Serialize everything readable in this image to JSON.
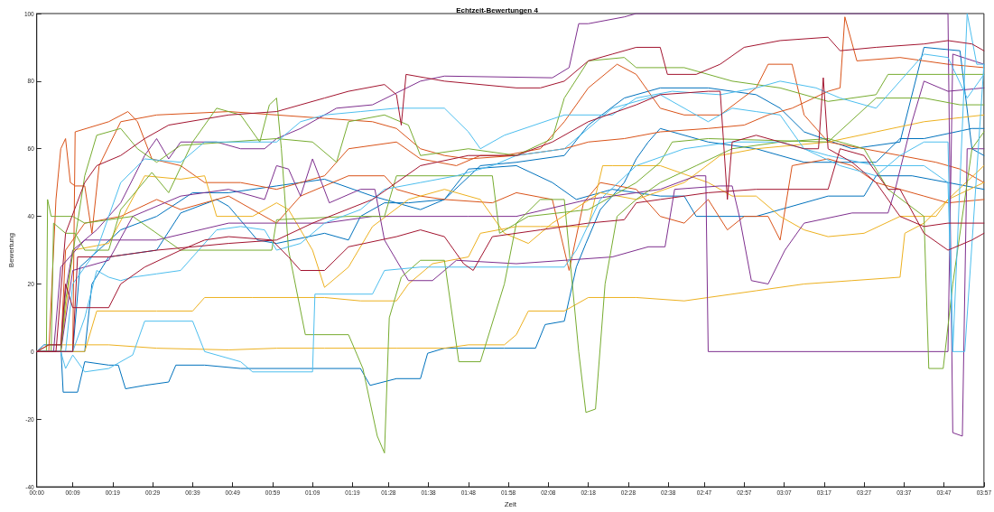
{
  "chart_data": {
    "type": "line",
    "title": "Echtzeit-Bewertungen 4",
    "xlabel": "Zeit",
    "ylabel": "Bewertung",
    "xlim": [
      0,
      3.95
    ],
    "xticks": [
      {
        "value": 0,
        "label": "00:00"
      },
      {
        "value": 0.15,
        "label": "00:09"
      },
      {
        "value": 0.3167,
        "label": "00:19"
      },
      {
        "value": 0.4833,
        "label": "00:29"
      },
      {
        "value": 0.65,
        "label": "00:39"
      },
      {
        "value": 0.8167,
        "label": "00:49"
      },
      {
        "value": 0.9833,
        "label": "00:59"
      },
      {
        "value": 1.15,
        "label": "01:09"
      },
      {
        "value": 1.3167,
        "label": "01:19"
      },
      {
        "value": 1.4667,
        "label": "01:28"
      },
      {
        "value": 1.6333,
        "label": "01:38"
      },
      {
        "value": 1.8,
        "label": "01:48"
      },
      {
        "value": 1.9667,
        "label": "01:58"
      },
      {
        "value": 2.1333,
        "label": "02:08"
      },
      {
        "value": 2.3,
        "label": "02:18"
      },
      {
        "value": 2.4667,
        "label": "02:28"
      },
      {
        "value": 2.6333,
        "label": "02:38"
      },
      {
        "value": 2.7833,
        "label": "02:47"
      },
      {
        "value": 2.95,
        "label": "02:57"
      },
      {
        "value": 3.1167,
        "label": "03:07"
      },
      {
        "value": 3.2833,
        "label": "03:17"
      },
      {
        "value": 3.45,
        "label": "03:27"
      },
      {
        "value": 3.6167,
        "label": "03:37"
      },
      {
        "value": 3.7833,
        "label": "03:47"
      },
      {
        "value": 3.95,
        "label": "03:57"
      }
    ],
    "ylim": [
      -40,
      100
    ],
    "yticks": [
      -40,
      -20,
      0,
      20,
      40,
      60,
      80,
      100
    ],
    "grid": false,
    "marker": "none",
    "line_style": "solid",
    "series": [
      {
        "color": "#0072bd",
        "x": [
          0,
          0.03,
          0.1,
          0.11,
          0.17,
          0.2,
          0.3,
          0.34,
          0.37,
          0.45,
          0.55,
          0.58,
          0.7,
          0.85,
          1.35,
          1.39,
          1.5,
          1.6,
          1.63,
          1.7,
          1.95,
          2.08,
          2.12,
          2.2,
          2.25,
          2.29,
          2.35,
          2.45,
          2.5,
          2.55,
          2.6,
          2.8,
          3.0,
          3.2,
          3.5,
          3.6,
          3.7,
          3.9,
          3.95
        ],
        "values": [
          0,
          2,
          2,
          -12,
          -12,
          -3,
          -4,
          -4,
          -11,
          -10,
          -9,
          -4,
          -4,
          -5,
          -5,
          -10,
          -8,
          -8,
          -0.5,
          1,
          1,
          1,
          8,
          9,
          25,
          32,
          42,
          50,
          57,
          62,
          66,
          62,
          60,
          56,
          56,
          63,
          63,
          66,
          66
        ]
      },
      {
        "color": "#0072bd",
        "x": [
          0,
          0.2,
          0.23,
          0.3,
          0.4,
          0.5,
          0.6,
          0.75,
          0.8,
          0.92,
          1.0,
          1.2,
          1.3,
          1.35,
          1.45,
          1.55,
          1.7,
          1.85,
          2.0,
          2.2,
          2.3,
          2.45,
          2.6,
          2.8,
          3.0,
          3.1,
          3.2,
          3.4,
          3.6,
          3.7,
          3.85,
          3.9,
          3.95
        ],
        "values": [
          0,
          0,
          20,
          28,
          29,
          30,
          41,
          45,
          43,
          33,
          32,
          35,
          33,
          40,
          44,
          44,
          45,
          55,
          56,
          58,
          67,
          75,
          78,
          78,
          76,
          72,
          65,
          60,
          62,
          90,
          89,
          60,
          58
        ]
      },
      {
        "color": "#0072bd",
        "x": [
          0,
          0.15,
          0.18,
          0.35,
          0.5,
          0.65,
          0.8,
          1.0,
          1.2,
          1.4,
          1.6,
          1.7,
          1.8,
          2.0,
          2.15,
          2.25,
          2.4,
          2.6,
          2.7,
          2.75,
          2.9,
          3.0,
          3.1,
          3.3,
          3.45,
          3.5,
          3.65,
          3.8,
          3.95
        ],
        "values": [
          0,
          0,
          25,
          36,
          40,
          47,
          47,
          49,
          51,
          46,
          42,
          45,
          54,
          55,
          50,
          45,
          48,
          46,
          46,
          40,
          40,
          40,
          42,
          46,
          46,
          52,
          52,
          50,
          48
        ]
      },
      {
        "color": "#d95319",
        "x": [
          0,
          0.05,
          0.08,
          0.1,
          0.12,
          0.14,
          0.16,
          0.2,
          0.23,
          0.26,
          0.35,
          0.5,
          0.8,
          1.0,
          1.2,
          1.4,
          1.5,
          1.6,
          1.7,
          1.8,
          2.0,
          2.2,
          2.3,
          2.45,
          2.6,
          2.8,
          2.95,
          3.05,
          3.15,
          3.3,
          3.35,
          3.37,
          3.42,
          3.6,
          3.8,
          3.95
        ],
        "values": [
          0,
          0,
          45,
          60,
          63,
          50,
          49,
          49,
          35,
          55,
          68,
          70,
          71,
          70,
          69,
          68,
          66,
          60,
          58,
          57,
          58,
          60,
          62,
          63,
          65,
          66,
          67,
          70,
          72,
          77,
          78,
          99,
          86,
          87,
          85,
          84
        ]
      },
      {
        "color": "#d95319",
        "x": [
          0,
          0.15,
          0.16,
          0.3,
          0.38,
          0.42,
          0.48,
          0.6,
          0.7,
          0.85,
          1.0,
          1.2,
          1.3,
          1.5,
          1.6,
          1.75,
          1.85,
          1.95,
          2.1,
          2.2,
          2.3,
          2.42,
          2.5,
          2.6,
          2.7,
          2.85,
          3.0,
          3.05,
          3.15,
          3.2,
          3.3,
          3.45,
          3.6,
          3.75,
          3.85,
          3.95
        ],
        "values": [
          0,
          0,
          65,
          68,
          71,
          68,
          57,
          55,
          50,
          50,
          48,
          52,
          60,
          62,
          57,
          55,
          58,
          58,
          60,
          68,
          78,
          85,
          82,
          72,
          70,
          70,
          78,
          85,
          85,
          70,
          62,
          60,
          58,
          56,
          54,
          50
        ]
      },
      {
        "color": "#d95319",
        "x": [
          0,
          0.1,
          0.12,
          0.2,
          0.35,
          0.5,
          0.6,
          0.8,
          1.0,
          1.1,
          1.2,
          1.3,
          1.45,
          1.5,
          1.6,
          1.7,
          1.9,
          2.0,
          2.15,
          2.22,
          2.28,
          2.35,
          2.5,
          2.6,
          2.7,
          2.8,
          2.88,
          2.95,
          3.05,
          3.1,
          3.15,
          3.3,
          3.4,
          3.5,
          3.7,
          3.8,
          3.95
        ],
        "values": [
          0,
          0,
          30,
          38,
          40,
          45,
          42,
          46,
          38,
          46,
          49,
          52,
          52,
          48,
          46,
          45,
          44,
          47,
          45,
          24,
          44,
          50,
          48,
          40,
          38,
          45,
          36,
          40,
          40,
          33,
          55,
          57,
          55,
          50,
          46,
          44,
          45
        ]
      },
      {
        "color": "#edb120",
        "x": [
          0,
          0.05,
          0.3,
          0.5,
          0.8,
          1.0,
          1.2,
          1.5,
          1.7,
          1.8,
          1.95,
          2.0,
          2.05,
          2.2,
          2.3,
          2.5,
          2.7,
          2.8,
          3.0,
          3.2,
          3.4,
          3.6,
          3.62,
          3.7,
          3.8,
          3.95
        ],
        "values": [
          0,
          2,
          2,
          1,
          0.5,
          1,
          1,
          1,
          1,
          2,
          2,
          5,
          12,
          12,
          16,
          16,
          15,
          16,
          18,
          20,
          21,
          22,
          35,
          38,
          45,
          50
        ]
      },
      {
        "color": "#edb120",
        "x": [
          0,
          0.2,
          0.25,
          0.5,
          0.65,
          0.7,
          0.9,
          1.2,
          1.35,
          1.5,
          1.55,
          1.65,
          1.8,
          1.85,
          2.0,
          2.1,
          2.3,
          2.36,
          2.4,
          2.6,
          2.8,
          2.9,
          3.0,
          3.1,
          3.2,
          3.3,
          3.45,
          3.6,
          3.75,
          3.8,
          3.95
        ],
        "values": [
          0,
          0,
          12,
          12,
          12,
          16,
          16,
          16,
          15,
          15,
          20,
          26,
          28,
          35,
          37,
          37,
          37,
          55,
          55,
          55,
          50,
          46,
          46,
          40,
          36,
          34,
          35,
          40,
          40,
          45,
          55
        ]
      },
      {
        "color": "#edb120",
        "x": [
          0,
          0.1,
          0.15,
          0.3,
          0.45,
          0.6,
          0.7,
          0.75,
          0.9,
          1.0,
          1.05,
          1.15,
          1.2,
          1.3,
          1.4,
          1.55,
          1.7,
          1.85,
          1.95,
          2.05,
          2.15,
          2.35,
          2.5,
          2.7,
          2.85,
          3.0,
          3.3,
          3.5,
          3.7,
          3.95
        ],
        "values": [
          0,
          0,
          30,
          32,
          52,
          51,
          52,
          40,
          40,
          44,
          42,
          30,
          19,
          25,
          37,
          45,
          48,
          45,
          35,
          32,
          38,
          47,
          45,
          50,
          58,
          60,
          62,
          65,
          68,
          70
        ]
      },
      {
        "color": "#7e2f8e",
        "x": [
          0,
          0.1,
          0.12,
          0.15,
          0.25,
          0.35,
          0.45,
          0.5,
          0.55,
          0.6,
          0.75,
          0.85,
          0.95,
          1.0,
          1.1,
          1.25,
          1.4,
          1.6,
          1.7,
          2.15,
          2.22,
          2.26,
          2.3,
          2.45,
          2.5,
          3.55,
          3.8,
          3.82,
          3.86,
          3.88,
          3.95
        ],
        "values": [
          0,
          0,
          18,
          30,
          36,
          44,
          58,
          63,
          57,
          62,
          62,
          60,
          60,
          63,
          66,
          72,
          73,
          80,
          81.5,
          81,
          84,
          97,
          97,
          99,
          100,
          100,
          100,
          -24,
          -25,
          60,
          60
        ]
      },
      {
        "color": "#7e2f8e",
        "x": [
          0,
          0.07,
          0.1,
          0.2,
          0.5,
          0.8,
          1.0,
          1.2,
          1.4,
          1.8,
          2.0,
          2.3,
          2.6,
          2.75,
          2.79,
          2.8,
          3.8,
          3.82,
          3.95
        ],
        "values": [
          0,
          0,
          25,
          33,
          33,
          38,
          38,
          38,
          40,
          40,
          40,
          45,
          48,
          52,
          52,
          0,
          0,
          88,
          85
        ]
      },
      {
        "color": "#7e2f8e",
        "x": [
          0,
          0.1,
          0.15,
          0.3,
          0.4,
          0.6,
          0.8,
          0.95,
          1.0,
          1.05,
          1.1,
          1.15,
          1.22,
          1.35,
          1.41,
          1.45,
          1.55,
          1.65,
          1.75,
          2.0,
          2.2,
          2.4,
          2.55,
          2.62,
          2.66,
          2.85,
          2.9,
          2.93,
          2.98,
          3.05,
          3.12,
          3.2,
          3.4,
          3.55,
          3.58,
          3.65,
          3.7,
          3.8,
          3.95
        ],
        "values": [
          0,
          0,
          24,
          27,
          40,
          46,
          48,
          45,
          55,
          54,
          46,
          57,
          44,
          48,
          48,
          33,
          21,
          21,
          27,
          26,
          27,
          28,
          31,
          31,
          48,
          49,
          49,
          40,
          21,
          20,
          30,
          38,
          41,
          41,
          48,
          68,
          80,
          77,
          78
        ]
      },
      {
        "color": "#77ac30",
        "x": [
          0,
          0.06,
          0.07,
          0.12,
          0.16,
          0.2,
          0.3,
          0.35,
          0.48,
          0.55,
          0.65,
          0.75,
          0.85,
          0.93,
          0.97,
          1.0,
          1.02,
          1.05,
          1.12,
          1.3,
          1.36,
          1.42,
          1.45,
          1.47,
          1.52,
          1.6,
          1.7,
          1.76,
          1.85,
          1.95,
          2.0,
          2.1,
          2.2,
          2.26,
          2.29,
          2.33,
          2.37,
          2.42,
          2.5,
          2.6,
          2.75,
          2.9,
          3.1,
          3.3,
          3.45,
          3.55,
          3.7,
          3.72,
          3.78,
          3.82,
          3.9,
          3.95
        ],
        "values": [
          0,
          0,
          38,
          35,
          35,
          30,
          30,
          42,
          53,
          47,
          62,
          72,
          70,
          62,
          73,
          75,
          60,
          30,
          5,
          5,
          -5,
          -25,
          -30,
          10,
          22,
          27,
          27,
          -3,
          -3,
          20,
          38,
          45,
          45,
          0,
          -18,
          -17,
          20,
          40,
          45,
          50,
          55,
          60,
          62,
          63,
          60,
          48,
          40,
          -5,
          -5,
          20,
          60,
          65
        ]
      },
      {
        "color": "#77ac30",
        "x": [
          0,
          0.04,
          0.045,
          0.06,
          0.15,
          0.2,
          0.3,
          0.4,
          0.6,
          0.98,
          1.0,
          1.3,
          1.45,
          1.5,
          1.9,
          1.93,
          2.05,
          2.3,
          2.5,
          2.6,
          2.65,
          2.8,
          3.3,
          3.5,
          3.7,
          3.85,
          3.95
        ],
        "values": [
          0,
          0,
          45,
          40,
          40,
          38,
          39,
          40,
          30,
          30,
          39,
          40,
          40,
          52,
          52,
          35,
          40,
          42,
          50,
          56,
          62,
          63,
          62,
          75,
          75,
          73,
          73
        ]
      },
      {
        "color": "#77ac30",
        "x": [
          0,
          0.1,
          0.12,
          0.2,
          0.25,
          0.35,
          0.42,
          0.5,
          0.6,
          0.8,
          1.0,
          1.15,
          1.25,
          1.3,
          1.45,
          1.55,
          1.6,
          1.8,
          2.0,
          2.15,
          2.2,
          2.3,
          2.45,
          2.5,
          2.7,
          2.9,
          3.1,
          3.3,
          3.5,
          3.55,
          3.8,
          3.95
        ],
        "values": [
          0,
          0,
          15,
          52,
          64,
          66,
          60,
          56,
          61,
          62,
          63,
          62,
          56,
          68,
          70,
          67,
          58,
          60,
          58,
          63,
          75,
          86,
          87,
          84,
          84,
          80,
          78,
          74,
          76,
          82,
          82,
          82
        ]
      },
      {
        "color": "#4dbeee",
        "x": [
          0,
          0.1,
          0.12,
          0.15,
          0.2,
          0.3,
          0.4,
          0.45,
          0.65,
          0.7,
          0.85,
          0.9,
          1.15,
          1.16,
          1.4,
          1.45,
          1.6,
          2.2,
          2.25,
          2.35,
          2.5,
          2.7,
          2.9,
          3.1,
          3.3,
          3.5,
          3.7,
          3.8,
          3.82,
          3.88,
          3.92,
          3.95
        ],
        "values": [
          0,
          0,
          -5,
          -1,
          -6,
          -5,
          -1,
          9,
          9,
          0,
          -3,
          -6,
          -6,
          17,
          17,
          24,
          25,
          25,
          30,
          45,
          55,
          60,
          62,
          62,
          58,
          55,
          55,
          50,
          0,
          100,
          85,
          85
        ]
      },
      {
        "color": "#4dbeee",
        "x": [
          0,
          0.15,
          0.2,
          0.25,
          0.3,
          0.35,
          0.4,
          0.5,
          0.6,
          0.75,
          0.85,
          0.95,
          1.0,
          1.1,
          1.2,
          1.35,
          1.45,
          1.6,
          1.75,
          1.9,
          2.0,
          2.2,
          2.4,
          2.6,
          2.8,
          2.9,
          3.0,
          3.1,
          3.2,
          3.35,
          3.5,
          3.6,
          3.7,
          3.8,
          3.82,
          3.87,
          3.95
        ],
        "values": [
          0,
          0,
          10,
          24,
          22,
          21,
          22,
          23,
          24,
          36,
          37,
          36,
          30,
          32,
          38,
          42,
          48,
          50,
          52,
          55,
          58,
          60,
          72,
          76,
          68,
          72,
          71,
          70,
          60,
          55,
          52,
          58,
          62,
          62,
          0,
          0,
          85
        ]
      },
      {
        "color": "#4dbeee",
        "x": [
          0,
          0.12,
          0.15,
          0.25,
          0.35,
          0.45,
          0.6,
          0.7,
          1.0,
          1.1,
          1.2,
          1.35,
          1.5,
          1.7,
          1.8,
          1.85,
          1.95,
          2.2,
          2.4,
          2.5,
          2.65,
          2.85,
          3.0,
          3.1,
          3.25,
          3.35,
          3.5,
          3.7,
          3.8,
          3.88,
          3.95
        ],
        "values": [
          0,
          0,
          20,
          30,
          50,
          57,
          56,
          62,
          62,
          68,
          70,
          71,
          72,
          72,
          65,
          60,
          64,
          70,
          70,
          75,
          77,
          76,
          78,
          80,
          78,
          75,
          72,
          88,
          87,
          75,
          82
        ]
      },
      {
        "color": "#a2142f",
        "x": [
          0,
          0.08,
          0.12,
          0.2,
          0.25,
          0.35,
          0.45,
          0.55,
          0.8,
          1.0,
          1.1,
          1.2,
          1.3,
          1.45,
          1.5,
          1.52,
          1.54,
          1.7,
          2.0,
          2.1,
          2.2,
          2.3,
          2.4,
          2.5,
          2.6,
          2.63,
          2.75,
          2.85,
          2.95,
          3.1,
          3.3,
          3.35,
          3.5,
          3.7,
          3.8,
          3.9,
          3.95
        ],
        "values": [
          0,
          0,
          35,
          50,
          55,
          58,
          63,
          67,
          70,
          71,
          73,
          75,
          77,
          79,
          76,
          67,
          82,
          80,
          78,
          78,
          80,
          86,
          88,
          90,
          90,
          82,
          82,
          85,
          90,
          92,
          93,
          89,
          90,
          91,
          92,
          91,
          89
        ]
      },
      {
        "color": "#a2142f",
        "x": [
          0,
          0.05,
          0.1,
          0.12,
          0.15,
          0.3,
          0.35,
          0.45,
          0.6,
          0.7,
          0.8,
          0.98,
          1.05,
          1.1,
          1.2,
          1.3,
          1.5,
          1.6,
          1.7,
          1.78,
          1.82,
          1.9,
          2.1,
          2.3,
          2.45,
          2.5,
          2.6,
          2.8,
          3.0,
          3.3,
          3.35,
          3.45,
          3.55,
          3.6,
          3.7,
          3.8,
          3.9,
          3.95
        ],
        "values": [
          0,
          2,
          2,
          20,
          13,
          13,
          20,
          25,
          30,
          33,
          34,
          33,
          28,
          24,
          24,
          31,
          34,
          36,
          34,
          26,
          24,
          34,
          36,
          38,
          39,
          44,
          45,
          47,
          48,
          48,
          60,
          58,
          48,
          48,
          35,
          30,
          33,
          35
        ]
      },
      {
        "color": "#a2142f",
        "x": [
          0,
          0.15,
          0.17,
          0.3,
          0.5,
          0.8,
          1.0,
          1.15,
          1.4,
          1.6,
          1.8,
          2.0,
          2.15,
          2.3,
          2.5,
          2.6,
          2.8,
          2.85,
          2.88,
          2.9,
          3.0,
          3.2,
          3.26,
          3.28,
          3.3,
          3.4,
          3.5,
          3.6,
          3.7,
          3.8,
          3.95
        ],
        "values": [
          0,
          0,
          28,
          28,
          30,
          32,
          33,
          38,
          45,
          55,
          58,
          58,
          62,
          68,
          73,
          76,
          77,
          77,
          45,
          62,
          64,
          60,
          60,
          81,
          60,
          56,
          50,
          40,
          37,
          38,
          38
        ]
      }
    ]
  }
}
